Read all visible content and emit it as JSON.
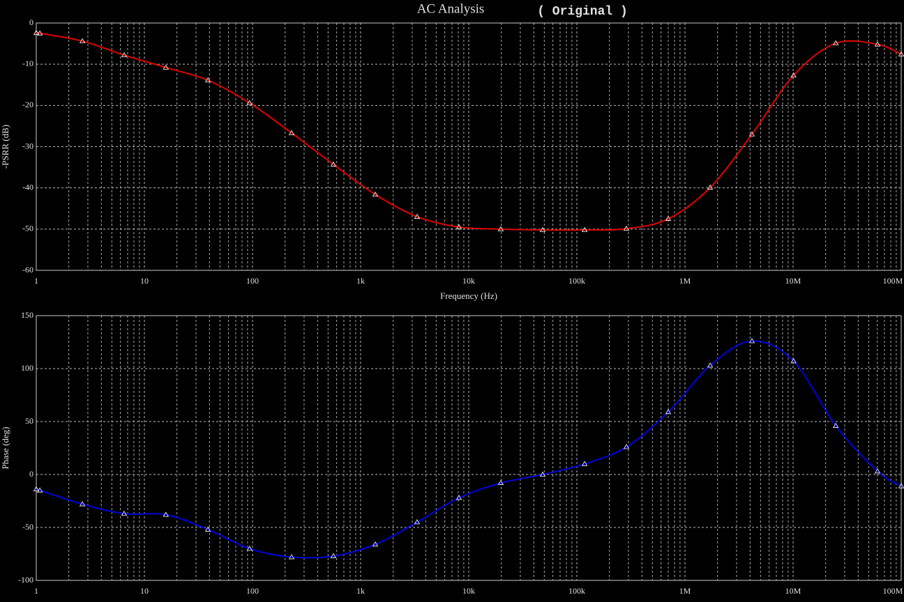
{
  "chart_data": [
    {
      "type": "line",
      "title": "AC Analysis",
      "subtitle": "( Original )",
      "xlabel": "Frequency (Hz)",
      "ylabel": "-PSRR (dB)",
      "xscale": "log",
      "grid": true,
      "xlim": [
        1,
        100000000
      ],
      "xticks": [
        1,
        10,
        100,
        {
          "value": 1000,
          "label": "1k"
        },
        {
          "value": 10000,
          "label": "10k"
        },
        {
          "value": 100000,
          "label": "100k"
        },
        {
          "value": 1000000,
          "label": "1M"
        },
        {
          "value": 10000000,
          "label": "10M"
        },
        {
          "value": 100000000,
          "label": "100M"
        }
      ],
      "ylim": [
        -60,
        0
      ],
      "yticks": [
        -60,
        -50,
        -40,
        -30,
        -20,
        -10,
        0
      ],
      "x": [
        1,
        1.08,
        2.67,
        6.5,
        15.8,
        38.7,
        94,
        230,
        560,
        1366,
        3330,
        8120,
        19800,
        48300,
        118000,
        287000,
        700000,
        1710000,
        4160000,
        10100000,
        24800000,
        60400000,
        100000000
      ],
      "series": [
        {
          "name": "-PSRR",
          "color": "#e00000",
          "values": [
            -2.4,
            -2.5,
            -4.4,
            -7.8,
            -10.8,
            -13.9,
            -19.4,
            -26.7,
            -34.3,
            -41.6,
            -47,
            -49.5,
            -50,
            -50.2,
            -50.2,
            -49.9,
            -47.5,
            -39.9,
            -27,
            -12.7,
            -4.9,
            -5.2,
            -7.6
          ]
        }
      ]
    },
    {
      "type": "line",
      "ylabel": "Phase (deg)",
      "xscale": "log",
      "grid": true,
      "xlim": [
        1,
        100000000
      ],
      "xticks": [
        1,
        10,
        100,
        {
          "value": 1000,
          "label": "1k"
        },
        {
          "value": 10000,
          "label": "10k"
        },
        {
          "value": 100000,
          "label": "100k"
        },
        {
          "value": 1000000,
          "label": "1M"
        },
        {
          "value": 10000000,
          "label": "10M"
        },
        {
          "value": 100000000,
          "label": "100M"
        }
      ],
      "ylim": [
        -100,
        150
      ],
      "yticks": [
        -100,
        -50,
        0,
        50,
        100,
        150
      ],
      "x": [
        1,
        1.08,
        2.67,
        6.5,
        15.8,
        38.7,
        94,
        230,
        560,
        1366,
        3330,
        8120,
        19800,
        48300,
        118000,
        287000,
        700000,
        1710000,
        4160000,
        10100000,
        24800000,
        60400000,
        100000000
      ],
      "series": [
        {
          "name": "Phase",
          "color": "#0000e0",
          "values": [
            -14,
            -15,
            -28,
            -37,
            -38,
            -52,
            -70,
            -78,
            -77,
            -66,
            -45,
            -22,
            -8,
            0,
            10,
            26,
            59,
            103,
            126,
            107,
            46,
            3,
            -11
          ]
        }
      ]
    }
  ]
}
